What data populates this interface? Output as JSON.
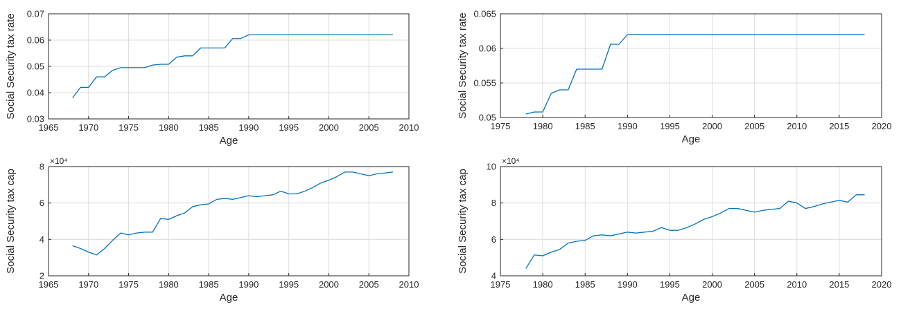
{
  "chart_data": [
    {
      "type": "line",
      "title": "",
      "xlabel": "Age",
      "ylabel": "Social Security tax rate",
      "xlim": [
        1965,
        2010
      ],
      "ylim": [
        0.03,
        0.07
      ],
      "xticks": [
        1965,
        1970,
        1975,
        1980,
        1985,
        1990,
        1995,
        2000,
        2005,
        2010
      ],
      "yticks": [
        0.03,
        0.04,
        0.05,
        0.06,
        0.07
      ],
      "xtick_labels": [
        "1965",
        "1970",
        "1975",
        "1980",
        "1985",
        "1990",
        "1995",
        "2000",
        "2005",
        "2010"
      ],
      "ytick_labels": [
        "0.03",
        "0.04",
        "0.05",
        "0.06",
        "0.07"
      ],
      "exponent_label": "",
      "grid": true,
      "series": [
        {
          "x": [
            1968,
            1969,
            1970,
            1971,
            1972,
            1973,
            1974,
            1975,
            1976,
            1977,
            1978,
            1979,
            1980,
            1981,
            1982,
            1983,
            1984,
            1985,
            1986,
            1987,
            1988,
            1989,
            1990,
            2008
          ],
          "y": [
            0.038,
            0.042,
            0.042,
            0.046,
            0.046,
            0.0485,
            0.0495,
            0.0495,
            0.0495,
            0.0495,
            0.0505,
            0.0508,
            0.0508,
            0.0535,
            0.054,
            0.054,
            0.057,
            0.057,
            0.057,
            0.057,
            0.0606,
            0.0606,
            0.062,
            0.062
          ]
        }
      ]
    },
    {
      "type": "line",
      "title": "",
      "xlabel": "Age",
      "ylabel": "Social Security tax rate",
      "xlim": [
        1975,
        2020
      ],
      "ylim": [
        0.05,
        0.065
      ],
      "xticks": [
        1975,
        1980,
        1985,
        1990,
        1995,
        2000,
        2005,
        2010,
        2015,
        2020
      ],
      "yticks": [
        0.05,
        0.055,
        0.06,
        0.065
      ],
      "xtick_labels": [
        "1975",
        "1980",
        "1985",
        "1990",
        "1995",
        "2000",
        "2005",
        "2010",
        "2015",
        "2020"
      ],
      "ytick_labels": [
        "0.05",
        "0.055",
        "0.06",
        "0.065"
      ],
      "exponent_label": "",
      "grid": true,
      "series": [
        {
          "x": [
            1978,
            1979,
            1980,
            1981,
            1982,
            1983,
            1984,
            1985,
            1986,
            1987,
            1988,
            1989,
            1990,
            2018
          ],
          "y": [
            0.0505,
            0.0508,
            0.0508,
            0.0535,
            0.054,
            0.054,
            0.057,
            0.057,
            0.057,
            0.057,
            0.0606,
            0.0606,
            0.062,
            0.062
          ]
        }
      ]
    },
    {
      "type": "line",
      "title": "",
      "xlabel": "Age",
      "ylabel": "Social Security tax cap",
      "xlim": [
        1965,
        2010
      ],
      "ylim": [
        20000,
        80000
      ],
      "xticks": [
        1965,
        1970,
        1975,
        1980,
        1985,
        1990,
        1995,
        2000,
        2005,
        2010
      ],
      "yticks": [
        20000,
        40000,
        60000,
        80000
      ],
      "xtick_labels": [
        "1965",
        "1970",
        "1975",
        "1980",
        "1985",
        "1990",
        "1995",
        "2000",
        "2005",
        "2010"
      ],
      "ytick_labels": [
        "2",
        "4",
        "6",
        "8"
      ],
      "exponent_label": "×10⁴",
      "grid": true,
      "series": [
        {
          "x": [
            1968,
            1969,
            1970,
            1971,
            1972,
            1973,
            1974,
            1975,
            1976,
            1977,
            1978,
            1979,
            1980,
            1981,
            1982,
            1983,
            1984,
            1985,
            1986,
            1987,
            1988,
            1989,
            1990,
            1991,
            1992,
            1993,
            1994,
            1995,
            1996,
            1997,
            1998,
            1999,
            2000,
            2001,
            2002,
            2003,
            2004,
            2005,
            2006,
            2007,
            2008
          ],
          "y": [
            36500,
            35000,
            33000,
            31500,
            35000,
            39500,
            43500,
            42500,
            43500,
            44000,
            44000,
            51500,
            51000,
            53000,
            54500,
            58000,
            59000,
            59500,
            62000,
            62500,
            62000,
            63000,
            64000,
            63500,
            64000,
            64500,
            66500,
            65000,
            65000,
            66500,
            68500,
            71000,
            72500,
            74500,
            77000,
            77000,
            76000,
            75000,
            76000,
            76500,
            77000
          ]
        }
      ]
    },
    {
      "type": "line",
      "title": "",
      "xlabel": "Age",
      "ylabel": "Social Security tax cap",
      "xlim": [
        1975,
        2020
      ],
      "ylim": [
        40000,
        100000
      ],
      "xticks": [
        1975,
        1980,
        1985,
        1990,
        1995,
        2000,
        2005,
        2010,
        2015,
        2020
      ],
      "yticks": [
        40000,
        60000,
        80000,
        100000
      ],
      "xtick_labels": [
        "1975",
        "1980",
        "1985",
        "1990",
        "1995",
        "2000",
        "2005",
        "2010",
        "2015",
        "2020"
      ],
      "ytick_labels": [
        "4",
        "6",
        "8",
        "10"
      ],
      "exponent_label": "×10⁴",
      "grid": true,
      "series": [
        {
          "x": [
            1978,
            1979,
            1980,
            1981,
            1982,
            1983,
            1984,
            1985,
            1986,
            1987,
            1988,
            1989,
            1990,
            1991,
            1992,
            1993,
            1994,
            1995,
            1996,
            1997,
            1998,
            1999,
            2000,
            2001,
            2002,
            2003,
            2004,
            2005,
            2006,
            2007,
            2008,
            2009,
            2010,
            2011,
            2012,
            2013,
            2014,
            2015,
            2016,
            2017,
            2018
          ],
          "y": [
            44000,
            51500,
            51000,
            53000,
            54500,
            58000,
            59000,
            59500,
            62000,
            62500,
            62000,
            63000,
            64000,
            63500,
            64000,
            64500,
            66500,
            65000,
            65000,
            66500,
            68500,
            71000,
            72500,
            74500,
            77000,
            77000,
            76000,
            75000,
            76000,
            76500,
            77000,
            81000,
            80000,
            77000,
            78000,
            79500,
            80500,
            81500,
            80500,
            84500,
            84500
          ]
        }
      ]
    }
  ],
  "colors": {
    "line": "#0072bd",
    "axis": "#262626",
    "grid": "#dcdcdc"
  }
}
